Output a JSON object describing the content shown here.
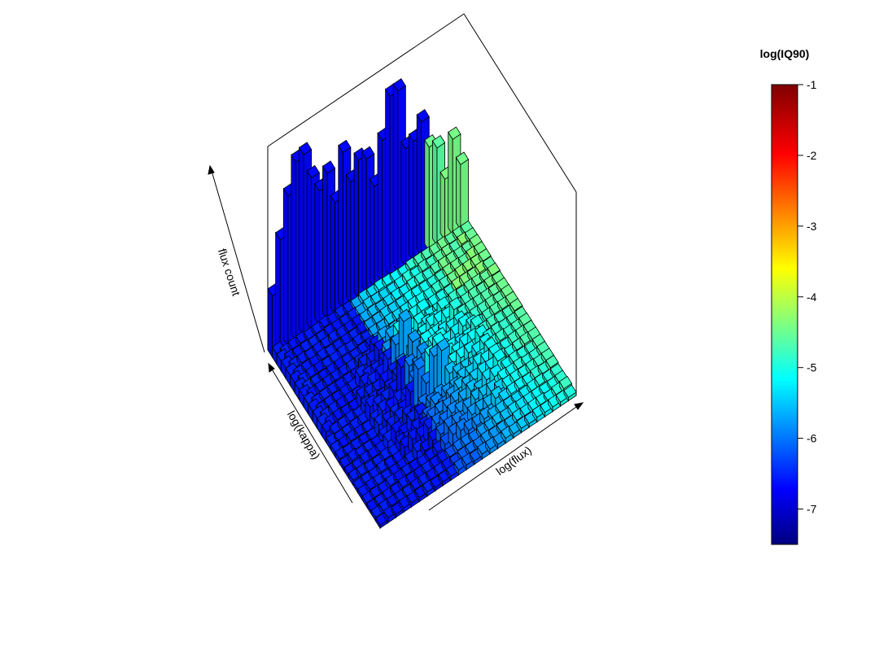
{
  "chart_data": {
    "type": "3d-histogram",
    "xlabel": "log(flux)",
    "ylabel": "log(kappa)",
    "zlabel": "flux count",
    "color_variable": "log(IQ90)",
    "colorbar": {
      "title": "log(IQ90)",
      "range": [
        -7.5,
        -1
      ],
      "ticks": [
        -1,
        -2,
        -3,
        -4,
        -5,
        -6,
        -7
      ],
      "colormap": "jet",
      "placement": "right"
    },
    "grid": false,
    "legend": "none"
  }
}
